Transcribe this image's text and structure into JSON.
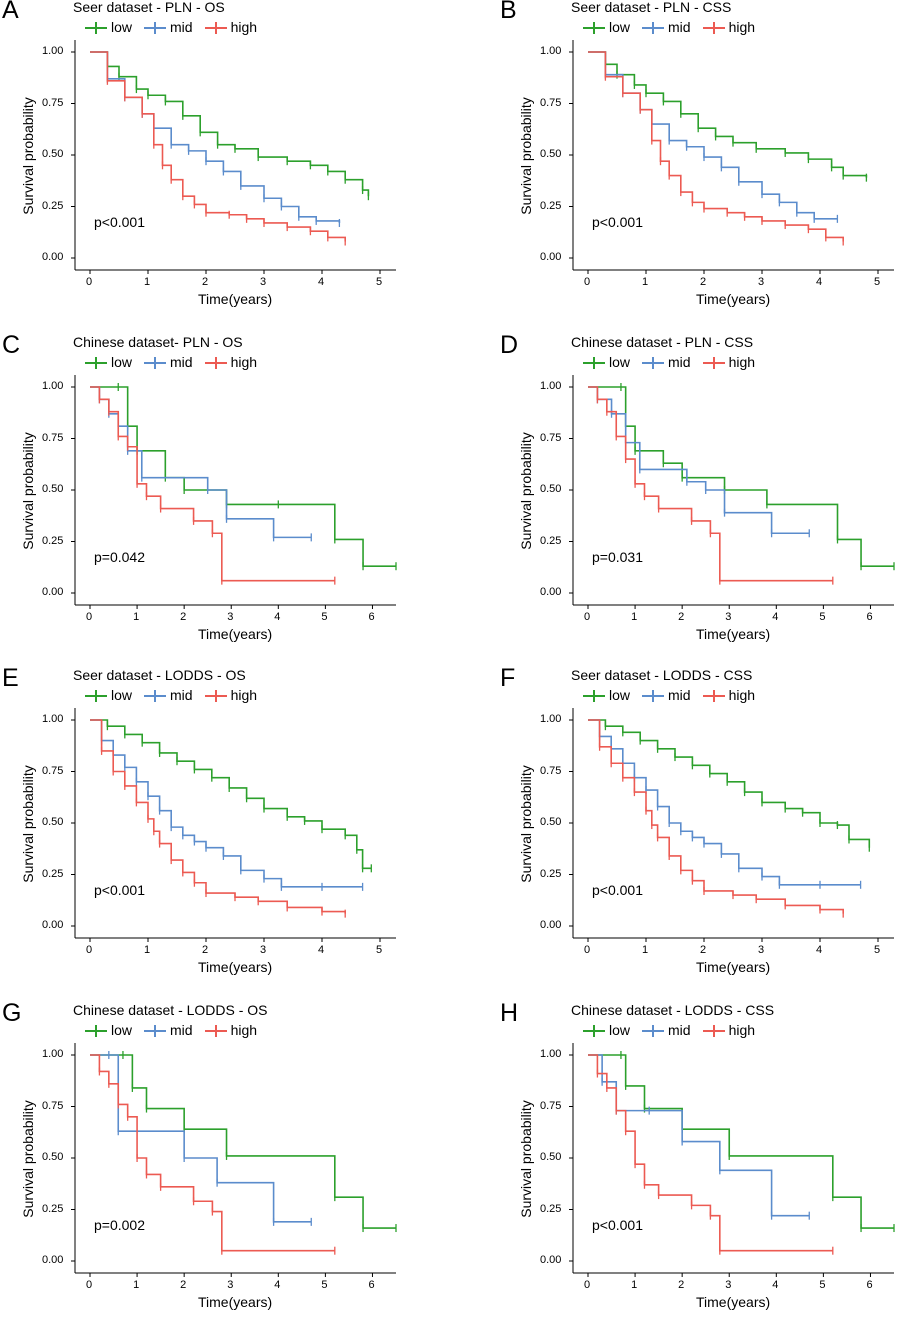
{
  "colors": {
    "low": "#2ca02c",
    "mid": "#5b8ccc",
    "high": "#ec5a52"
  },
  "legend_labels": [
    "low",
    "mid",
    "high"
  ],
  "chart_data": [
    {
      "letter": "A",
      "title": "Seer dataset - PLN - OS",
      "type": "line",
      "xlabel": "Time(years)",
      "ylabel": "Survival probability",
      "pvalue": "p<0.001",
      "xlim": [
        0,
        5
      ],
      "ylim": [
        0,
        1
      ],
      "xticks": [
        0,
        1,
        2,
        3,
        4,
        5
      ],
      "yticks": [
        "0.00",
        "0.25",
        "0.50",
        "0.75",
        "1.00"
      ],
      "series": [
        {
          "name": "low",
          "x": [
            0,
            0.3,
            0.5,
            0.8,
            1.0,
            1.3,
            1.6,
            1.9,
            2.2,
            2.5,
            2.9,
            3.4,
            3.8,
            4.1,
            4.4,
            4.7,
            4.8
          ],
          "y": [
            1.0,
            0.93,
            0.88,
            0.82,
            0.79,
            0.76,
            0.69,
            0.61,
            0.55,
            0.53,
            0.49,
            0.47,
            0.45,
            0.42,
            0.38,
            0.33,
            0.3
          ]
        },
        {
          "name": "mid",
          "x": [
            0,
            0.3,
            0.6,
            0.9,
            1.1,
            1.4,
            1.7,
            2.0,
            2.3,
            2.6,
            3.0,
            3.3,
            3.6,
            3.9,
            4.3
          ],
          "y": [
            1.0,
            0.87,
            0.78,
            0.7,
            0.63,
            0.55,
            0.52,
            0.47,
            0.42,
            0.35,
            0.29,
            0.25,
            0.2,
            0.18,
            0.17
          ]
        },
        {
          "name": "high",
          "x": [
            0,
            0.3,
            0.6,
            0.9,
            1.1,
            1.25,
            1.4,
            1.6,
            1.8,
            2.0,
            2.4,
            2.7,
            3.0,
            3.4,
            3.8,
            4.1,
            4.4
          ],
          "y": [
            1.0,
            0.86,
            0.78,
            0.7,
            0.55,
            0.45,
            0.38,
            0.3,
            0.26,
            0.22,
            0.21,
            0.19,
            0.17,
            0.15,
            0.13,
            0.1,
            0.08
          ]
        }
      ]
    },
    {
      "letter": "B",
      "title": "Seer dataset - PLN - CSS",
      "type": "line",
      "xlabel": "Time(years)",
      "ylabel": "Survival probability",
      "pvalue": "p<0.001",
      "xlim": [
        0,
        5
      ],
      "ylim": [
        0,
        1
      ],
      "xticks": [
        0,
        1,
        2,
        3,
        4,
        5
      ],
      "yticks": [
        "0.00",
        "0.25",
        "0.50",
        "0.75",
        "1.00"
      ],
      "series": [
        {
          "name": "low",
          "x": [
            0,
            0.3,
            0.5,
            0.8,
            1.0,
            1.3,
            1.6,
            1.9,
            2.2,
            2.5,
            2.9,
            3.4,
            3.8,
            4.2,
            4.4,
            4.8
          ],
          "y": [
            1.0,
            0.94,
            0.89,
            0.84,
            0.8,
            0.76,
            0.7,
            0.63,
            0.59,
            0.56,
            0.53,
            0.51,
            0.48,
            0.44,
            0.4,
            0.39
          ]
        },
        {
          "name": "mid",
          "x": [
            0,
            0.3,
            0.6,
            0.9,
            1.1,
            1.4,
            1.7,
            2.0,
            2.3,
            2.6,
            3.0,
            3.3,
            3.6,
            3.9,
            4.3
          ],
          "y": [
            1.0,
            0.89,
            0.8,
            0.72,
            0.65,
            0.57,
            0.54,
            0.49,
            0.44,
            0.37,
            0.31,
            0.27,
            0.22,
            0.19,
            0.19
          ]
        },
        {
          "name": "high",
          "x": [
            0,
            0.3,
            0.6,
            0.9,
            1.1,
            1.25,
            1.4,
            1.6,
            1.8,
            2.0,
            2.4,
            2.7,
            3.0,
            3.4,
            3.8,
            4.1,
            4.4
          ],
          "y": [
            1.0,
            0.88,
            0.8,
            0.72,
            0.57,
            0.47,
            0.4,
            0.32,
            0.27,
            0.24,
            0.22,
            0.2,
            0.18,
            0.16,
            0.14,
            0.1,
            0.08
          ]
        }
      ]
    },
    {
      "letter": "C",
      "title": "Chinese dataset- PLN - OS",
      "type": "line",
      "xlabel": "Time(years)",
      "ylabel": "Survival probability",
      "pvalue": "p=0.042",
      "xlim": [
        0,
        6.5
      ],
      "ylim": [
        0,
        1
      ],
      "xticks": [
        0,
        1,
        2,
        3,
        4,
        5,
        6
      ],
      "yticks": [
        "0.00",
        "0.25",
        "0.50",
        "0.75",
        "1.00"
      ],
      "series": [
        {
          "name": "low",
          "x": [
            0,
            0.6,
            0.8,
            1.0,
            1.6,
            2.0,
            2.9,
            4.0,
            5.2,
            5.8,
            6.5
          ],
          "y": [
            1.0,
            1.0,
            0.81,
            0.69,
            0.56,
            0.5,
            0.43,
            0.43,
            0.26,
            0.13,
            0.13
          ]
        },
        {
          "name": "mid",
          "x": [
            0,
            0.2,
            0.4,
            0.6,
            0.8,
            1.1,
            2.5,
            2.9,
            3.9,
            4.7
          ],
          "y": [
            1.0,
            0.94,
            0.87,
            0.81,
            0.69,
            0.56,
            0.5,
            0.36,
            0.27,
            0.27
          ]
        },
        {
          "name": "high",
          "x": [
            0,
            0.2,
            0.4,
            0.6,
            0.8,
            1.0,
            1.2,
            1.5,
            2.2,
            2.6,
            2.8,
            5.2
          ],
          "y": [
            1.0,
            0.94,
            0.88,
            0.76,
            0.71,
            0.53,
            0.47,
            0.41,
            0.35,
            0.29,
            0.06,
            0.06
          ]
        }
      ]
    },
    {
      "letter": "D",
      "title": "Chinese dataset - PLN - CSS",
      "type": "line",
      "xlabel": "Time(years)",
      "ylabel": "Survival probability",
      "pvalue": "p=0.031",
      "xlim": [
        0,
        6.5
      ],
      "ylim": [
        0,
        1
      ],
      "xticks": [
        0,
        1,
        2,
        3,
        4,
        5,
        6
      ],
      "yticks": [
        "0.00",
        "0.25",
        "0.50",
        "0.75",
        "1.00"
      ],
      "series": [
        {
          "name": "low",
          "x": [
            0,
            0.7,
            0.8,
            1.0,
            1.6,
            2.0,
            2.9,
            3.8,
            5.3,
            5.8,
            6.5
          ],
          "y": [
            1.0,
            1.0,
            0.81,
            0.69,
            0.63,
            0.56,
            0.5,
            0.43,
            0.26,
            0.13,
            0.13
          ]
        },
        {
          "name": "mid",
          "x": [
            0,
            0.2,
            0.5,
            0.8,
            1.1,
            2.1,
            2.5,
            2.9,
            3.9,
            4.7
          ],
          "y": [
            1.0,
            0.94,
            0.87,
            0.73,
            0.6,
            0.54,
            0.5,
            0.39,
            0.29,
            0.29
          ]
        },
        {
          "name": "high",
          "x": [
            0,
            0.2,
            0.4,
            0.6,
            0.8,
            1.0,
            1.2,
            1.5,
            2.2,
            2.6,
            2.8,
            5.2
          ],
          "y": [
            1.0,
            0.94,
            0.88,
            0.76,
            0.65,
            0.53,
            0.47,
            0.41,
            0.35,
            0.29,
            0.06,
            0.06
          ]
        }
      ]
    },
    {
      "letter": "E",
      "title": "Seer dataset - LODDS - OS",
      "type": "line",
      "xlabel": "Time(years)",
      "ylabel": "Survival probability",
      "pvalue": "p<0.001",
      "xlim": [
        0,
        5
      ],
      "ylim": [
        0,
        1
      ],
      "xticks": [
        0,
        1,
        2,
        3,
        4,
        5
      ],
      "yticks": [
        "0.00",
        "0.25",
        "0.50",
        "0.75",
        "1.00"
      ],
      "series": [
        {
          "name": "low",
          "x": [
            0,
            0.3,
            0.6,
            0.9,
            1.2,
            1.5,
            1.8,
            2.1,
            2.4,
            2.7,
            3.0,
            3.4,
            3.7,
            4.0,
            4.4,
            4.6,
            4.7,
            4.85
          ],
          "y": [
            1.0,
            0.97,
            0.93,
            0.89,
            0.84,
            0.8,
            0.76,
            0.72,
            0.67,
            0.62,
            0.57,
            0.53,
            0.51,
            0.47,
            0.44,
            0.37,
            0.28,
            0.28
          ]
        },
        {
          "name": "mid",
          "x": [
            0,
            0.2,
            0.4,
            0.6,
            0.8,
            1.0,
            1.2,
            1.4,
            1.6,
            1.8,
            2.0,
            2.3,
            2.6,
            3.0,
            3.3,
            4.0,
            4.7
          ],
          "y": [
            1.0,
            0.9,
            0.83,
            0.77,
            0.7,
            0.63,
            0.56,
            0.48,
            0.44,
            0.41,
            0.38,
            0.34,
            0.27,
            0.23,
            0.19,
            0.19,
            0.19
          ]
        },
        {
          "name": "high",
          "x": [
            0,
            0.2,
            0.4,
            0.6,
            0.8,
            1.0,
            1.1,
            1.2,
            1.4,
            1.6,
            1.8,
            2.0,
            2.5,
            2.9,
            3.4,
            4.0,
            4.4
          ],
          "y": [
            1.0,
            0.85,
            0.75,
            0.68,
            0.6,
            0.52,
            0.46,
            0.4,
            0.32,
            0.26,
            0.21,
            0.16,
            0.14,
            0.12,
            0.09,
            0.07,
            0.06
          ]
        }
      ]
    },
    {
      "letter": "F",
      "title": "Seer dataset - LODDS - CSS",
      "type": "line",
      "xlabel": "Time(years)",
      "ylabel": "Survival probability",
      "pvalue": "p<0.001",
      "xlim": [
        0,
        5
      ],
      "ylim": [
        0,
        1
      ],
      "xticks": [
        0,
        1,
        2,
        3,
        4,
        5
      ],
      "yticks": [
        "0.00",
        "0.25",
        "0.50",
        "0.75",
        "1.00"
      ],
      "series": [
        {
          "name": "low",
          "x": [
            0,
            0.3,
            0.6,
            0.9,
            1.2,
            1.5,
            1.8,
            2.1,
            2.4,
            2.7,
            3.0,
            3.4,
            3.7,
            4.0,
            4.3,
            4.5,
            4.85
          ],
          "y": [
            1.0,
            0.97,
            0.94,
            0.9,
            0.86,
            0.82,
            0.78,
            0.74,
            0.7,
            0.65,
            0.6,
            0.57,
            0.55,
            0.5,
            0.49,
            0.42,
            0.38
          ]
        },
        {
          "name": "mid",
          "x": [
            0,
            0.2,
            0.4,
            0.6,
            0.8,
            1.0,
            1.2,
            1.4,
            1.6,
            1.8,
            2.0,
            2.3,
            2.6,
            3.0,
            3.3,
            4.0,
            4.7
          ],
          "y": [
            1.0,
            0.92,
            0.86,
            0.79,
            0.72,
            0.66,
            0.58,
            0.5,
            0.46,
            0.43,
            0.4,
            0.35,
            0.28,
            0.24,
            0.2,
            0.2,
            0.2
          ]
        },
        {
          "name": "high",
          "x": [
            0,
            0.2,
            0.4,
            0.6,
            0.8,
            1.0,
            1.1,
            1.2,
            1.4,
            1.6,
            1.8,
            2.0,
            2.5,
            2.9,
            3.4,
            4.0,
            4.4
          ],
          "y": [
            1.0,
            0.87,
            0.79,
            0.72,
            0.65,
            0.56,
            0.49,
            0.43,
            0.34,
            0.27,
            0.22,
            0.17,
            0.15,
            0.13,
            0.1,
            0.08,
            0.06
          ]
        }
      ]
    },
    {
      "letter": "G",
      "title": "Chinese dataset - LODDS - OS",
      "type": "line",
      "xlabel": "Time(years)",
      "ylabel": "Survival probability",
      "pvalue": "p=0.002",
      "xlim": [
        0,
        6.5
      ],
      "ylim": [
        0,
        1
      ],
      "xticks": [
        0,
        1,
        2,
        3,
        4,
        5,
        6
      ],
      "yticks": [
        "0.00",
        "0.25",
        "0.50",
        "0.75",
        "1.00"
      ],
      "series": [
        {
          "name": "low",
          "x": [
            0,
            0.7,
            0.9,
            1.2,
            2.0,
            2.9,
            5.2,
            5.8,
            6.5
          ],
          "y": [
            1.0,
            1.0,
            0.84,
            0.74,
            0.64,
            0.51,
            0.31,
            0.16,
            0.16
          ]
        },
        {
          "name": "mid",
          "x": [
            0,
            0.4,
            0.6,
            2.0,
            2.7,
            3.9,
            4.7
          ],
          "y": [
            1.0,
            1.0,
            0.63,
            0.5,
            0.38,
            0.19,
            0.19
          ]
        },
        {
          "name": "high",
          "x": [
            0,
            0.2,
            0.4,
            0.6,
            0.8,
            1.0,
            1.2,
            1.5,
            2.2,
            2.6,
            2.8,
            5.2
          ],
          "y": [
            1.0,
            0.92,
            0.86,
            0.76,
            0.7,
            0.5,
            0.42,
            0.36,
            0.29,
            0.24,
            0.05,
            0.05
          ]
        }
      ]
    },
    {
      "letter": "H",
      "title": "Chinese dataset - LODDS - CSS",
      "type": "line",
      "xlabel": "Time(years)",
      "ylabel": "Survival probability",
      "pvalue": "p<0.001",
      "xlim": [
        0,
        6.5
      ],
      "ylim": [
        0,
        1
      ],
      "xticks": [
        0,
        1,
        2,
        3,
        4,
        5,
        6
      ],
      "yticks": [
        "0.00",
        "0.25",
        "0.50",
        "0.75",
        "1.00"
      ],
      "series": [
        {
          "name": "low",
          "x": [
            0,
            0.7,
            0.8,
            1.2,
            2.0,
            3.0,
            5.2,
            5.8,
            6.5
          ],
          "y": [
            1.0,
            1.0,
            0.85,
            0.74,
            0.64,
            0.51,
            0.31,
            0.16,
            0.16
          ]
        },
        {
          "name": "mid",
          "x": [
            0,
            0.3,
            0.6,
            1.3,
            2.0,
            2.8,
            3.9,
            4.7
          ],
          "y": [
            1.0,
            0.87,
            0.73,
            0.73,
            0.58,
            0.44,
            0.22,
            0.22
          ]
        },
        {
          "name": "high",
          "x": [
            0,
            0.2,
            0.4,
            0.6,
            0.8,
            1.0,
            1.2,
            1.5,
            2.2,
            2.6,
            2.8,
            5.2
          ],
          "y": [
            1.0,
            0.91,
            0.84,
            0.73,
            0.63,
            0.47,
            0.37,
            0.32,
            0.27,
            0.22,
            0.05,
            0.05
          ]
        }
      ]
    }
  ]
}
